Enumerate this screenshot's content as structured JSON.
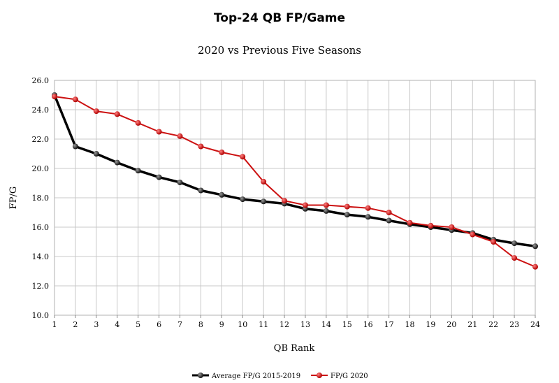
{
  "chart_data": {
    "type": "line",
    "title": "Top-24 QB FP/Game",
    "subtitle": "2020 vs Previous Five Seasons",
    "xlabel": "QB Rank",
    "ylabel": "FP/G",
    "x": [
      1,
      2,
      3,
      4,
      5,
      6,
      7,
      8,
      9,
      10,
      11,
      12,
      13,
      14,
      15,
      16,
      17,
      18,
      19,
      20,
      21,
      22,
      23,
      24
    ],
    "xlim": [
      1,
      24
    ],
    "ylim": [
      10.0,
      26.0
    ],
    "y_ticks": [
      "10.0",
      "12.0",
      "14.0",
      "16.0",
      "18.0",
      "20.0",
      "22.0",
      "24.0",
      "26.0"
    ],
    "grid": true,
    "legend_position": "bottom",
    "series": [
      {
        "name": "Average FP/G 2015-2019",
        "color": "#000000",
        "values": [
          25.0,
          21.5,
          21.0,
          20.4,
          19.85,
          19.4,
          19.05,
          18.5,
          18.2,
          17.9,
          17.75,
          17.6,
          17.25,
          17.1,
          16.85,
          16.7,
          16.45,
          16.2,
          16.0,
          15.8,
          15.6,
          15.15,
          14.9,
          14.7
        ]
      },
      {
        "name": "FP/G 2020",
        "color": "#cc1111",
        "values": [
          24.9,
          24.7,
          23.9,
          23.7,
          23.1,
          22.5,
          22.2,
          21.5,
          21.1,
          20.8,
          19.1,
          17.8,
          17.5,
          17.5,
          17.4,
          17.3,
          17.0,
          16.3,
          16.1,
          16.0,
          15.5,
          15.0,
          13.9,
          13.3
        ]
      }
    ]
  }
}
